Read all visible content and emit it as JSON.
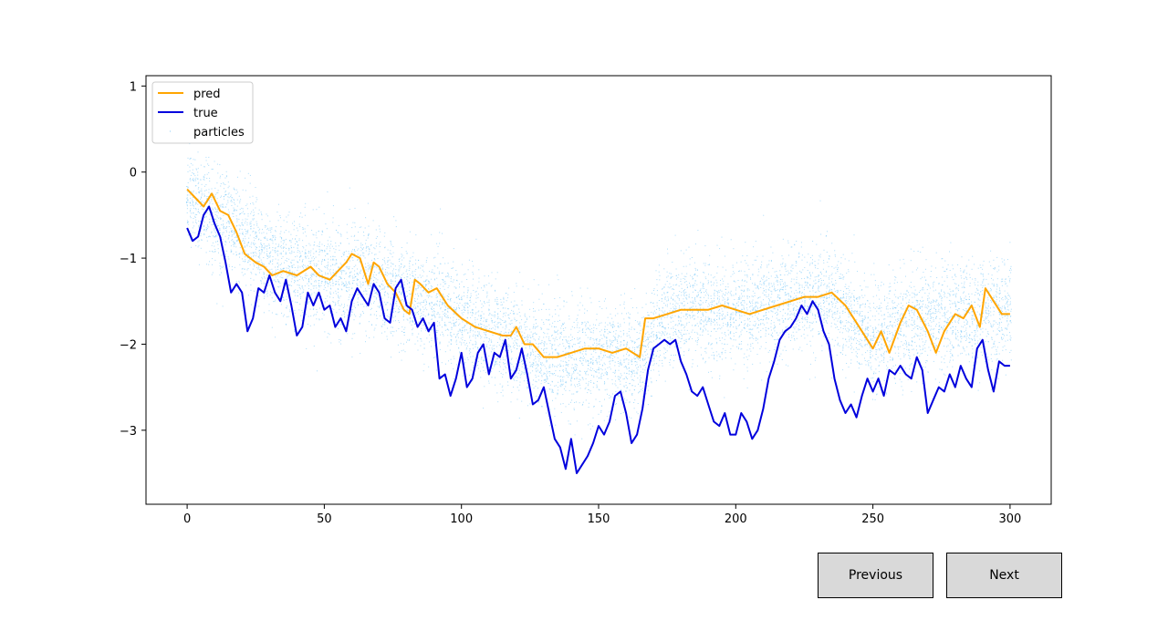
{
  "chart_data": {
    "type": "line",
    "title": "",
    "xlabel": "",
    "ylabel": "",
    "xlim": [
      -15,
      315
    ],
    "ylim": [
      -3.86,
      1.12
    ],
    "xticks": [
      0,
      50,
      100,
      150,
      200,
      250,
      300
    ],
    "yticks": [
      1,
      0,
      -1,
      -2,
      -3
    ],
    "xtick_labels": [
      "0",
      "50",
      "100",
      "150",
      "200",
      "250",
      "300"
    ],
    "ytick_labels": [
      "1",
      "0",
      "−1",
      "−2",
      "−3"
    ],
    "legend": {
      "position": "upper-left",
      "entries": [
        "pred",
        "true",
        "particles"
      ]
    },
    "series": [
      {
        "name": "pred",
        "color": "#ffa500",
        "kind": "line",
        "points": [
          [
            0,
            -0.2
          ],
          [
            3,
            -0.3
          ],
          [
            6,
            -0.4
          ],
          [
            9,
            -0.25
          ],
          [
            12,
            -0.45
          ],
          [
            15,
            -0.5
          ],
          [
            18,
            -0.7
          ],
          [
            21,
            -0.95
          ],
          [
            25,
            -1.05
          ],
          [
            28,
            -1.1
          ],
          [
            31,
            -1.2
          ],
          [
            35,
            -1.15
          ],
          [
            40,
            -1.2
          ],
          [
            45,
            -1.1
          ],
          [
            48,
            -1.2
          ],
          [
            52,
            -1.25
          ],
          [
            55,
            -1.15
          ],
          [
            58,
            -1.05
          ],
          [
            60,
            -0.95
          ],
          [
            63,
            -1.0
          ],
          [
            66,
            -1.3
          ],
          [
            68,
            -1.05
          ],
          [
            70,
            -1.1
          ],
          [
            73,
            -1.3
          ],
          [
            76,
            -1.4
          ],
          [
            79,
            -1.6
          ],
          [
            81,
            -1.65
          ],
          [
            83,
            -1.25
          ],
          [
            85,
            -1.3
          ],
          [
            88,
            -1.4
          ],
          [
            91,
            -1.35
          ],
          [
            95,
            -1.55
          ],
          [
            100,
            -1.7
          ],
          [
            105,
            -1.8
          ],
          [
            110,
            -1.85
          ],
          [
            115,
            -1.9
          ],
          [
            118,
            -1.9
          ],
          [
            120,
            -1.8
          ],
          [
            123,
            -2.0
          ],
          [
            126,
            -2.0
          ],
          [
            130,
            -2.15
          ],
          [
            135,
            -2.15
          ],
          [
            140,
            -2.1
          ],
          [
            145,
            -2.05
          ],
          [
            150,
            -2.05
          ],
          [
            155,
            -2.1
          ],
          [
            160,
            -2.05
          ],
          [
            165,
            -2.15
          ],
          [
            167,
            -1.7
          ],
          [
            170,
            -1.7
          ],
          [
            175,
            -1.65
          ],
          [
            180,
            -1.6
          ],
          [
            185,
            -1.6
          ],
          [
            190,
            -1.6
          ],
          [
            195,
            -1.55
          ],
          [
            200,
            -1.6
          ],
          [
            205,
            -1.65
          ],
          [
            210,
            -1.6
          ],
          [
            215,
            -1.55
          ],
          [
            220,
            -1.5
          ],
          [
            225,
            -1.45
          ],
          [
            230,
            -1.45
          ],
          [
            235,
            -1.4
          ],
          [
            240,
            -1.55
          ],
          [
            245,
            -1.8
          ],
          [
            250,
            -2.05
          ],
          [
            253,
            -1.85
          ],
          [
            256,
            -2.1
          ],
          [
            260,
            -1.75
          ],
          [
            263,
            -1.55
          ],
          [
            266,
            -1.6
          ],
          [
            270,
            -1.85
          ],
          [
            273,
            -2.1
          ],
          [
            276,
            -1.85
          ],
          [
            280,
            -1.65
          ],
          [
            283,
            -1.7
          ],
          [
            286,
            -1.55
          ],
          [
            289,
            -1.8
          ],
          [
            291,
            -1.35
          ],
          [
            294,
            -1.5
          ],
          [
            297,
            -1.65
          ],
          [
            300,
            -1.65
          ]
        ]
      },
      {
        "name": "true",
        "color": "#0000dd",
        "kind": "line",
        "points": [
          [
            0,
            -0.65
          ],
          [
            2,
            -0.8
          ],
          [
            4,
            -0.75
          ],
          [
            6,
            -0.5
          ],
          [
            8,
            -0.4
          ],
          [
            10,
            -0.6
          ],
          [
            12,
            -0.75
          ],
          [
            14,
            -1.05
          ],
          [
            16,
            -1.4
          ],
          [
            18,
            -1.3
          ],
          [
            20,
            -1.4
          ],
          [
            22,
            -1.85
          ],
          [
            24,
            -1.7
          ],
          [
            26,
            -1.35
          ],
          [
            28,
            -1.4
          ],
          [
            30,
            -1.2
          ],
          [
            32,
            -1.4
          ],
          [
            34,
            -1.5
          ],
          [
            36,
            -1.25
          ],
          [
            38,
            -1.55
          ],
          [
            40,
            -1.9
          ],
          [
            42,
            -1.8
          ],
          [
            44,
            -1.4
          ],
          [
            46,
            -1.55
          ],
          [
            48,
            -1.4
          ],
          [
            50,
            -1.6
          ],
          [
            52,
            -1.55
          ],
          [
            54,
            -1.8
          ],
          [
            56,
            -1.7
          ],
          [
            58,
            -1.85
          ],
          [
            60,
            -1.5
          ],
          [
            62,
            -1.35
          ],
          [
            64,
            -1.45
          ],
          [
            66,
            -1.55
          ],
          [
            68,
            -1.3
          ],
          [
            70,
            -1.4
          ],
          [
            72,
            -1.7
          ],
          [
            74,
            -1.75
          ],
          [
            76,
            -1.35
          ],
          [
            78,
            -1.25
          ],
          [
            80,
            -1.55
          ],
          [
            82,
            -1.6
          ],
          [
            84,
            -1.8
          ],
          [
            86,
            -1.7
          ],
          [
            88,
            -1.85
          ],
          [
            90,
            -1.75
          ],
          [
            92,
            -2.4
          ],
          [
            94,
            -2.35
          ],
          [
            96,
            -2.6
          ],
          [
            98,
            -2.4
          ],
          [
            100,
            -2.1
          ],
          [
            102,
            -2.5
          ],
          [
            104,
            -2.4
          ],
          [
            106,
            -2.1
          ],
          [
            108,
            -2.0
          ],
          [
            110,
            -2.35
          ],
          [
            112,
            -2.1
          ],
          [
            114,
            -2.15
          ],
          [
            116,
            -1.95
          ],
          [
            118,
            -2.4
          ],
          [
            120,
            -2.3
          ],
          [
            122,
            -2.05
          ],
          [
            124,
            -2.35
          ],
          [
            126,
            -2.7
          ],
          [
            128,
            -2.65
          ],
          [
            130,
            -2.5
          ],
          [
            132,
            -2.8
          ],
          [
            134,
            -3.1
          ],
          [
            136,
            -3.2
          ],
          [
            138,
            -3.45
          ],
          [
            140,
            -3.1
          ],
          [
            142,
            -3.5
          ],
          [
            144,
            -3.4
          ],
          [
            146,
            -3.3
          ],
          [
            148,
            -3.15
          ],
          [
            150,
            -2.95
          ],
          [
            152,
            -3.05
          ],
          [
            154,
            -2.9
          ],
          [
            156,
            -2.6
          ],
          [
            158,
            -2.55
          ],
          [
            160,
            -2.8
          ],
          [
            162,
            -3.15
          ],
          [
            164,
            -3.05
          ],
          [
            166,
            -2.75
          ],
          [
            168,
            -2.3
          ],
          [
            170,
            -2.05
          ],
          [
            172,
            -2.0
          ],
          [
            174,
            -1.95
          ],
          [
            176,
            -2.0
          ],
          [
            178,
            -1.95
          ],
          [
            180,
            -2.2
          ],
          [
            182,
            -2.35
          ],
          [
            184,
            -2.55
          ],
          [
            186,
            -2.6
          ],
          [
            188,
            -2.5
          ],
          [
            190,
            -2.7
          ],
          [
            192,
            -2.9
          ],
          [
            194,
            -2.95
          ],
          [
            196,
            -2.8
          ],
          [
            198,
            -3.05
          ],
          [
            200,
            -3.05
          ],
          [
            202,
            -2.8
          ],
          [
            204,
            -2.9
          ],
          [
            206,
            -3.1
          ],
          [
            208,
            -3.0
          ],
          [
            210,
            -2.75
          ],
          [
            212,
            -2.4
          ],
          [
            214,
            -2.2
          ],
          [
            216,
            -1.95
          ],
          [
            218,
            -1.85
          ],
          [
            220,
            -1.8
          ],
          [
            222,
            -1.7
          ],
          [
            224,
            -1.55
          ],
          [
            226,
            -1.65
          ],
          [
            228,
            -1.5
          ],
          [
            230,
            -1.6
          ],
          [
            232,
            -1.85
          ],
          [
            234,
            -2.0
          ],
          [
            236,
            -2.4
          ],
          [
            238,
            -2.65
          ],
          [
            240,
            -2.8
          ],
          [
            242,
            -2.7
          ],
          [
            244,
            -2.85
          ],
          [
            246,
            -2.6
          ],
          [
            248,
            -2.4
          ],
          [
            250,
            -2.55
          ],
          [
            252,
            -2.4
          ],
          [
            254,
            -2.6
          ],
          [
            256,
            -2.3
          ],
          [
            258,
            -2.35
          ],
          [
            260,
            -2.25
          ],
          [
            262,
            -2.35
          ],
          [
            264,
            -2.4
          ],
          [
            266,
            -2.15
          ],
          [
            268,
            -2.3
          ],
          [
            270,
            -2.8
          ],
          [
            272,
            -2.65
          ],
          [
            274,
            -2.5
          ],
          [
            276,
            -2.55
          ],
          [
            278,
            -2.35
          ],
          [
            280,
            -2.5
          ],
          [
            282,
            -2.25
          ],
          [
            284,
            -2.4
          ],
          [
            286,
            -2.5
          ],
          [
            288,
            -2.05
          ],
          [
            290,
            -1.95
          ],
          [
            292,
            -2.3
          ],
          [
            294,
            -2.55
          ],
          [
            296,
            -2.2
          ],
          [
            298,
            -2.25
          ],
          [
            300,
            -2.25
          ]
        ]
      },
      {
        "name": "particles",
        "color": "#87cefa",
        "kind": "scatter",
        "center_points": [
          [
            0,
            -0.25
          ],
          [
            15,
            -0.6
          ],
          [
            30,
            -1.05
          ],
          [
            50,
            -1.2
          ],
          [
            65,
            -1.2
          ],
          [
            80,
            -1.45
          ],
          [
            95,
            -1.6
          ],
          [
            110,
            -1.85
          ],
          [
            125,
            -2.05
          ],
          [
            140,
            -2.2
          ],
          [
            155,
            -2.15
          ],
          [
            165,
            -2.15
          ],
          [
            175,
            -1.65
          ],
          [
            190,
            -1.6
          ],
          [
            205,
            -1.6
          ],
          [
            220,
            -1.5
          ],
          [
            235,
            -1.45
          ],
          [
            250,
            -1.95
          ],
          [
            265,
            -1.7
          ],
          [
            280,
            -1.65
          ],
          [
            300,
            -1.65
          ]
        ],
        "spread": 0.5,
        "per_step": 30
      }
    ]
  },
  "buttons": {
    "previous": "Previous",
    "next": "Next"
  }
}
